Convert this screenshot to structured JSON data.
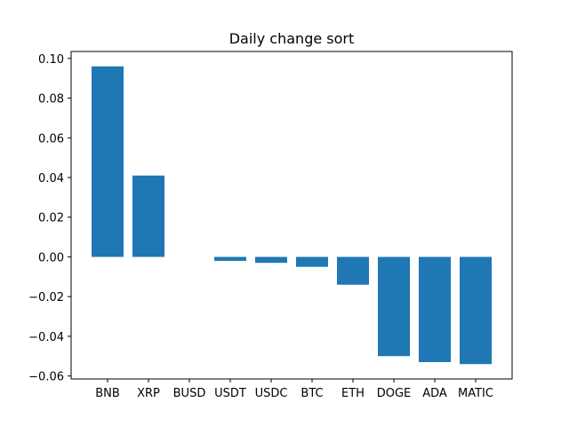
{
  "chart_data": {
    "type": "bar",
    "title": "Daily change sort",
    "xlabel": "",
    "ylabel": "",
    "categories": [
      "BNB",
      "XRP",
      "BUSD",
      "USDT",
      "USDC",
      "BTC",
      "ETH",
      "DOGE",
      "ADA",
      "MATIC"
    ],
    "values": [
      0.096,
      0.041,
      0.0,
      -0.002,
      -0.003,
      -0.005,
      -0.014,
      -0.05,
      -0.053,
      -0.054
    ],
    "ylim": [
      -0.0615,
      0.1035
    ],
    "yticks": [
      0.1,
      0.08,
      0.06,
      0.04,
      0.02,
      0.0,
      -0.02,
      -0.04,
      -0.06
    ],
    "ytick_labels": [
      "0.10",
      "0.08",
      "0.06",
      "0.04",
      "0.02",
      "0.00",
      "−0.02",
      "−0.04",
      "−0.06"
    ],
    "grid": false,
    "legend": "none",
    "bar_color": "#1f77b4"
  }
}
